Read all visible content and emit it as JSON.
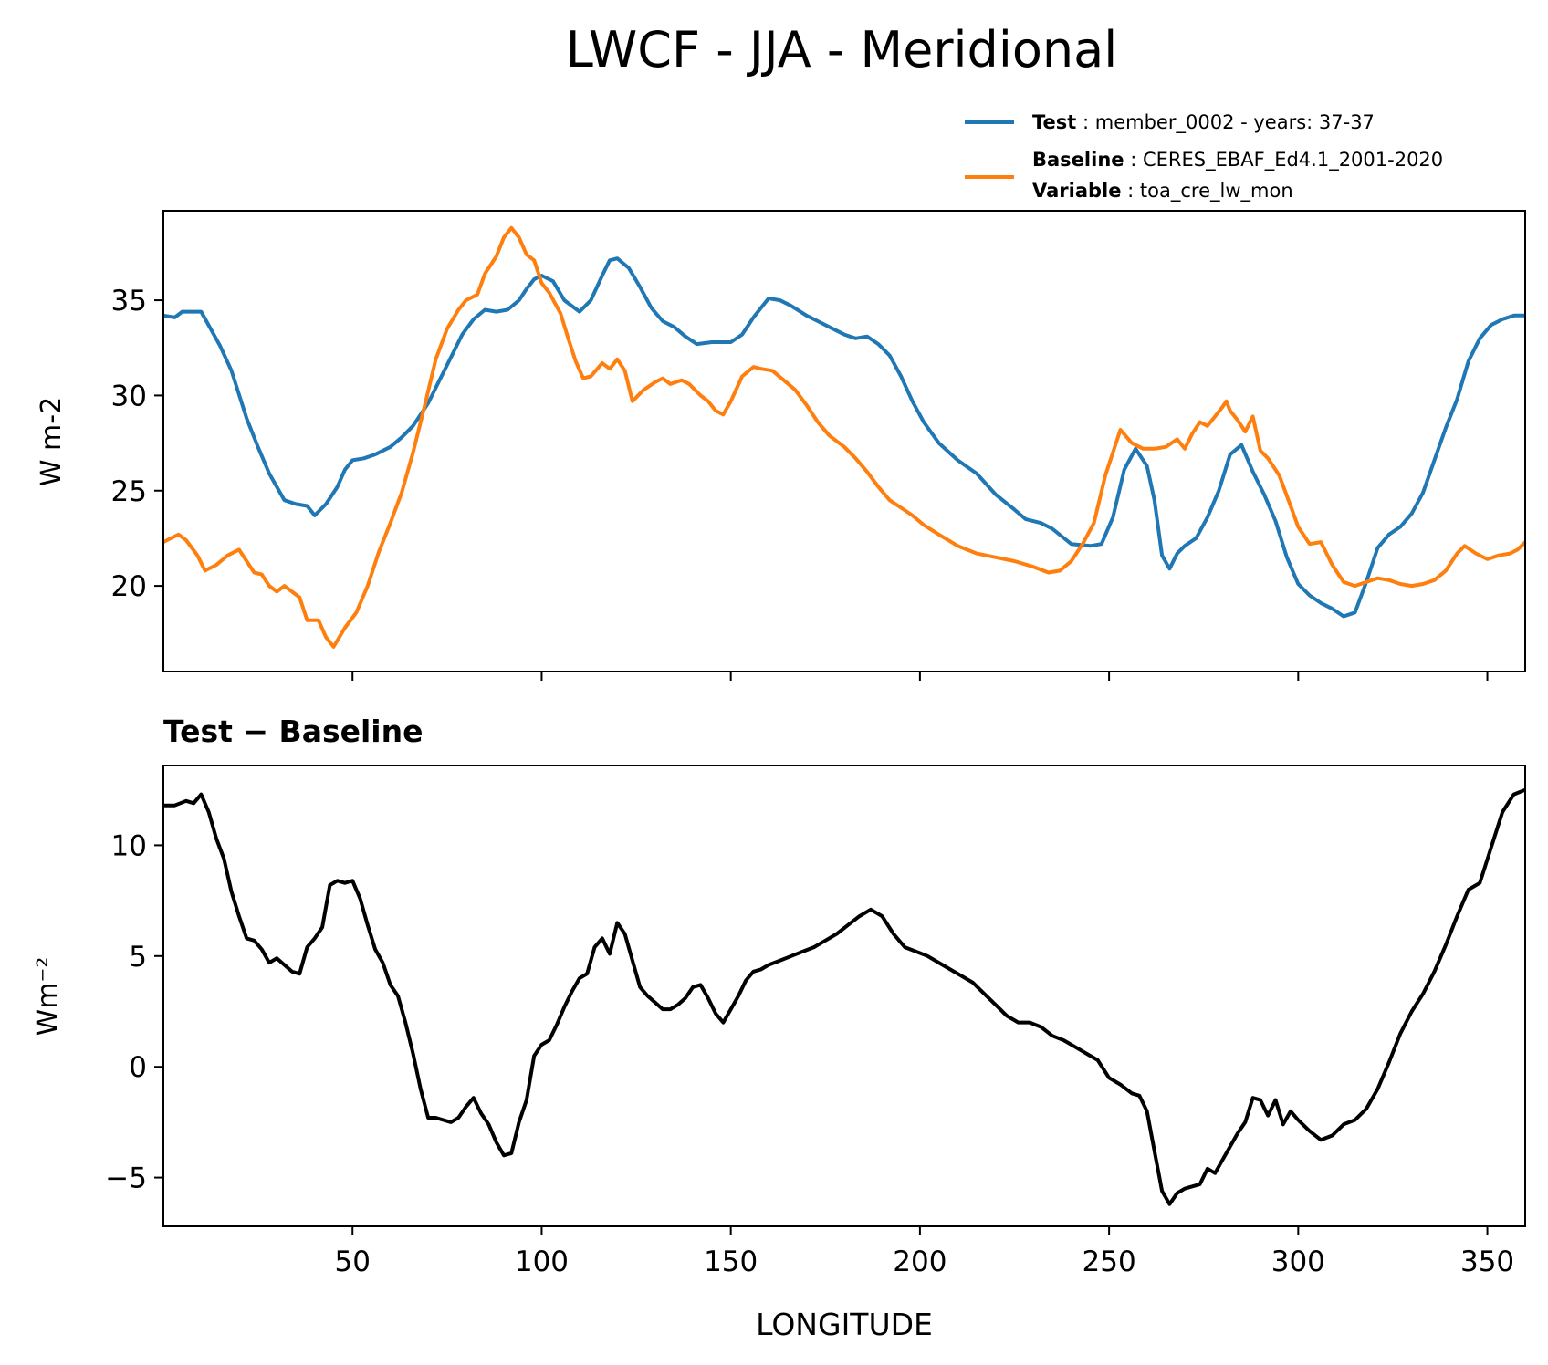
{
  "title": "LWCF - JJA - Meridional",
  "legend": {
    "test_key": "Test",
    "test_value": "member_0002 - years: 37-37",
    "baseline_key": "Baseline",
    "baseline_value": "CERES_EBAF_Ed4.1_2001-2020",
    "variable_key": "Variable",
    "variable_value": "toa_cre_lw_mon"
  },
  "colors": {
    "test": "#1f77b4",
    "baseline": "#ff7f0e",
    "diff": "#000000"
  },
  "chart_data": [
    {
      "type": "line",
      "panel": "top",
      "title": "",
      "xlabel": "",
      "ylabel": "W m-2",
      "xlim": [
        0,
        360
      ],
      "ylim": [
        15.5,
        39.7
      ],
      "xticks": [
        50,
        100,
        150,
        200,
        250,
        300,
        350
      ],
      "yticks": [
        20,
        25,
        30,
        35
      ],
      "legend_position": "above-right",
      "series": [
        {
          "name": "Test",
          "x": [
            0,
            3,
            5,
            7,
            10,
            15,
            18,
            22,
            25,
            28,
            32,
            35,
            38,
            40,
            43,
            46,
            48,
            50,
            53,
            56,
            60,
            63,
            66,
            70,
            73,
            76,
            79,
            82,
            85,
            88,
            91,
            94,
            96,
            98,
            100,
            103,
            106,
            110,
            113,
            116,
            118,
            120,
            123,
            126,
            129,
            132,
            135,
            138,
            141,
            145,
            150,
            153,
            156,
            158,
            160,
            163,
            166,
            170,
            173,
            176,
            180,
            183,
            186,
            189,
            192,
            195,
            198,
            201,
            205,
            210,
            215,
            220,
            225,
            228,
            232,
            235,
            240,
            245,
            248,
            251,
            254,
            257,
            260,
            262,
            264,
            266,
            268,
            270,
            273,
            276,
            279,
            282,
            285,
            288,
            291,
            294,
            297,
            300,
            303,
            306,
            309,
            312,
            315,
            318,
            321,
            324,
            327,
            330,
            333,
            336,
            339,
            342,
            345,
            348,
            351,
            354,
            357,
            360
          ],
          "values": [
            34.2,
            34.1,
            34.4,
            34.4,
            34.4,
            32.6,
            31.3,
            28.8,
            27.3,
            25.9,
            24.5,
            24.3,
            24.2,
            23.7,
            24.3,
            25.2,
            26.1,
            26.6,
            26.7,
            26.9,
            27.3,
            27.8,
            28.4,
            29.6,
            30.8,
            32.0,
            33.2,
            34.0,
            34.5,
            34.4,
            34.5,
            35.0,
            35.6,
            36.1,
            36.3,
            36.0,
            35.0,
            34.4,
            35.0,
            36.3,
            37.1,
            37.2,
            36.7,
            35.7,
            34.6,
            33.9,
            33.6,
            33.1,
            32.7,
            32.8,
            32.8,
            33.2,
            34.1,
            34.6,
            35.1,
            35.0,
            34.7,
            34.2,
            33.9,
            33.6,
            33.2,
            33.0,
            33.1,
            32.7,
            32.1,
            31.0,
            29.7,
            28.6,
            27.5,
            26.6,
            25.9,
            24.8,
            24.0,
            23.5,
            23.3,
            23.0,
            22.2,
            22.1,
            22.2,
            23.6,
            26.1,
            27.2,
            26.3,
            24.5,
            21.6,
            20.9,
            21.7,
            22.1,
            22.5,
            23.6,
            25.0,
            26.9,
            27.4,
            26.0,
            24.8,
            23.4,
            21.5,
            20.1,
            19.5,
            19.1,
            18.8,
            18.4,
            18.6,
            20.2,
            22.0,
            22.7,
            23.1,
            23.8,
            24.9,
            26.6,
            28.3,
            29.8,
            31.8,
            33.0,
            33.7,
            34.0,
            34.2,
            34.2
          ]
        },
        {
          "name": "Baseline",
          "x": [
            0,
            2,
            4,
            6,
            9,
            11,
            14,
            17,
            20,
            24,
            26,
            28,
            30,
            32,
            36,
            38,
            41,
            43,
            45,
            48,
            51,
            54,
            57,
            60,
            63,
            66,
            69,
            72,
            75,
            78,
            80,
            83,
            85,
            88,
            90,
            92,
            94,
            96,
            98,
            100,
            102,
            105,
            107,
            109,
            111,
            113,
            116,
            118,
            120,
            122,
            124,
            127,
            130,
            132,
            134,
            137,
            139,
            142,
            144,
            146,
            148,
            150,
            153,
            156,
            158,
            161,
            164,
            167,
            170,
            173,
            176,
            180,
            183,
            186,
            189,
            192,
            195,
            198,
            201,
            205,
            210,
            215,
            220,
            225,
            230,
            234,
            237,
            240,
            243,
            246,
            249,
            251,
            253,
            256,
            259,
            262,
            265,
            268,
            270,
            272,
            274,
            276,
            278,
            280,
            281,
            282,
            284,
            286,
            288,
            290,
            292,
            295,
            298,
            300,
            303,
            306,
            309,
            312,
            315,
            318,
            321,
            324,
            327,
            330,
            333,
            336,
            339,
            342,
            344,
            347,
            350,
            353,
            356,
            358,
            360
          ],
          "values": [
            22.3,
            22.5,
            22.7,
            22.4,
            21.6,
            20.8,
            21.1,
            21.6,
            21.9,
            20.7,
            20.6,
            20.0,
            19.7,
            20.0,
            19.4,
            18.2,
            18.2,
            17.3,
            16.8,
            17.8,
            18.6,
            20.0,
            21.8,
            23.3,
            24.9,
            27.0,
            29.4,
            31.9,
            33.5,
            34.5,
            35.0,
            35.3,
            36.4,
            37.3,
            38.3,
            38.8,
            38.3,
            37.4,
            37.1,
            35.9,
            35.4,
            34.3,
            33.0,
            31.8,
            30.9,
            31.0,
            31.7,
            31.4,
            31.9,
            31.3,
            29.7,
            30.3,
            30.7,
            30.9,
            30.6,
            30.8,
            30.6,
            30.0,
            29.7,
            29.2,
            29.0,
            29.7,
            31.0,
            31.5,
            31.4,
            31.3,
            30.8,
            30.3,
            29.5,
            28.6,
            27.9,
            27.3,
            26.7,
            26.0,
            25.2,
            24.5,
            24.1,
            23.7,
            23.2,
            22.7,
            22.1,
            21.7,
            21.5,
            21.3,
            21.0,
            20.7,
            20.8,
            21.3,
            22.2,
            23.3,
            25.8,
            27.0,
            28.2,
            27.5,
            27.2,
            27.2,
            27.3,
            27.7,
            27.2,
            28.0,
            28.6,
            28.4,
            28.9,
            29.4,
            29.7,
            29.2,
            28.7,
            28.1,
            28.9,
            27.1,
            26.7,
            25.8,
            24.2,
            23.1,
            22.2,
            22.3,
            21.1,
            20.2,
            20.0,
            20.2,
            20.4,
            20.3,
            20.1,
            20.0,
            20.1,
            20.3,
            20.8,
            21.7,
            22.1,
            21.7,
            21.4,
            21.6,
            21.7,
            21.9,
            22.3
          ]
        }
      ]
    },
    {
      "type": "line",
      "panel": "bottom",
      "title": "Test − Baseline",
      "xlabel": "LONGITUDE",
      "ylabel": "Wm⁻²",
      "xlim": [
        0,
        360
      ],
      "ylim": [
        -7.2,
        13.6
      ],
      "xticks": [
        50,
        100,
        150,
        200,
        250,
        300,
        350
      ],
      "yticks": [
        -5,
        0,
        5,
        10
      ],
      "series": [
        {
          "name": "Test − Baseline",
          "x": [
            0,
            3,
            6,
            8,
            10,
            12,
            14,
            16,
            18,
            20,
            22,
            24,
            26,
            28,
            30,
            32,
            34,
            36,
            38,
            40,
            42,
            44,
            46,
            48,
            50,
            52,
            54,
            56,
            58,
            60,
            62,
            64,
            66,
            68,
            70,
            72,
            74,
            76,
            78,
            80,
            82,
            84,
            86,
            88,
            90,
            92,
            94,
            96,
            98,
            100,
            102,
            104,
            106,
            108,
            110,
            112,
            114,
            116,
            118,
            120,
            122,
            124,
            126,
            128,
            130,
            132,
            134,
            136,
            138,
            140,
            142,
            144,
            146,
            148,
            150,
            152,
            154,
            156,
            158,
            160,
            163,
            166,
            169,
            172,
            175,
            178,
            181,
            184,
            187,
            190,
            193,
            196,
            199,
            202,
            205,
            208,
            211,
            214,
            217,
            220,
            223,
            226,
            229,
            232,
            235,
            238,
            241,
            244,
            247,
            250,
            253,
            256,
            258,
            260,
            262,
            264,
            266,
            268,
            270,
            272,
            274,
            276,
            278,
            280,
            282,
            284,
            286,
            288,
            290,
            292,
            294,
            296,
            298,
            300,
            303,
            306,
            309,
            312,
            315,
            318,
            321,
            324,
            327,
            330,
            333,
            336,
            339,
            342,
            345,
            348,
            351,
            354,
            357,
            360
          ],
          "values": [
            11.8,
            11.8,
            12.0,
            11.9,
            12.3,
            11.5,
            10.3,
            9.4,
            7.9,
            6.8,
            5.8,
            5.7,
            5.3,
            4.7,
            4.9,
            4.6,
            4.3,
            4.2,
            5.4,
            5.8,
            6.3,
            8.2,
            8.4,
            8.3,
            8.4,
            7.6,
            6.4,
            5.3,
            4.7,
            3.7,
            3.2,
            2.0,
            0.6,
            -1.0,
            -2.3,
            -2.3,
            -2.4,
            -2.5,
            -2.3,
            -1.8,
            -1.4,
            -2.1,
            -2.6,
            -3.4,
            -4.0,
            -3.9,
            -2.5,
            -1.5,
            0.5,
            1.0,
            1.2,
            1.9,
            2.7,
            3.4,
            4.0,
            4.2,
            5.4,
            5.8,
            5.1,
            6.5,
            6.0,
            4.8,
            3.6,
            3.2,
            2.9,
            2.6,
            2.6,
            2.8,
            3.1,
            3.6,
            3.7,
            3.1,
            2.4,
            2.0,
            2.6,
            3.2,
            3.9,
            4.3,
            4.4,
            4.6,
            4.8,
            5.0,
            5.2,
            5.4,
            5.7,
            6.0,
            6.4,
            6.8,
            7.1,
            6.8,
            6.0,
            5.4,
            5.2,
            5.0,
            4.7,
            4.4,
            4.1,
            3.8,
            3.3,
            2.8,
            2.3,
            2.0,
            2.0,
            1.8,
            1.4,
            1.2,
            0.9,
            0.6,
            0.3,
            -0.5,
            -0.8,
            -1.2,
            -1.3,
            -2.0,
            -3.8,
            -5.6,
            -6.2,
            -5.7,
            -5.5,
            -5.4,
            -5.3,
            -4.6,
            -4.8,
            -4.2,
            -3.6,
            -3.0,
            -2.5,
            -1.4,
            -1.5,
            -2.2,
            -1.5,
            -2.6,
            -2.0,
            -2.4,
            -2.9,
            -3.3,
            -3.1,
            -2.6,
            -2.4,
            -1.9,
            -1.0,
            0.2,
            1.5,
            2.5,
            3.3,
            4.3,
            5.5,
            6.8,
            8.0,
            8.3,
            9.9,
            11.5,
            12.3,
            12.5
          ]
        }
      ]
    }
  ]
}
